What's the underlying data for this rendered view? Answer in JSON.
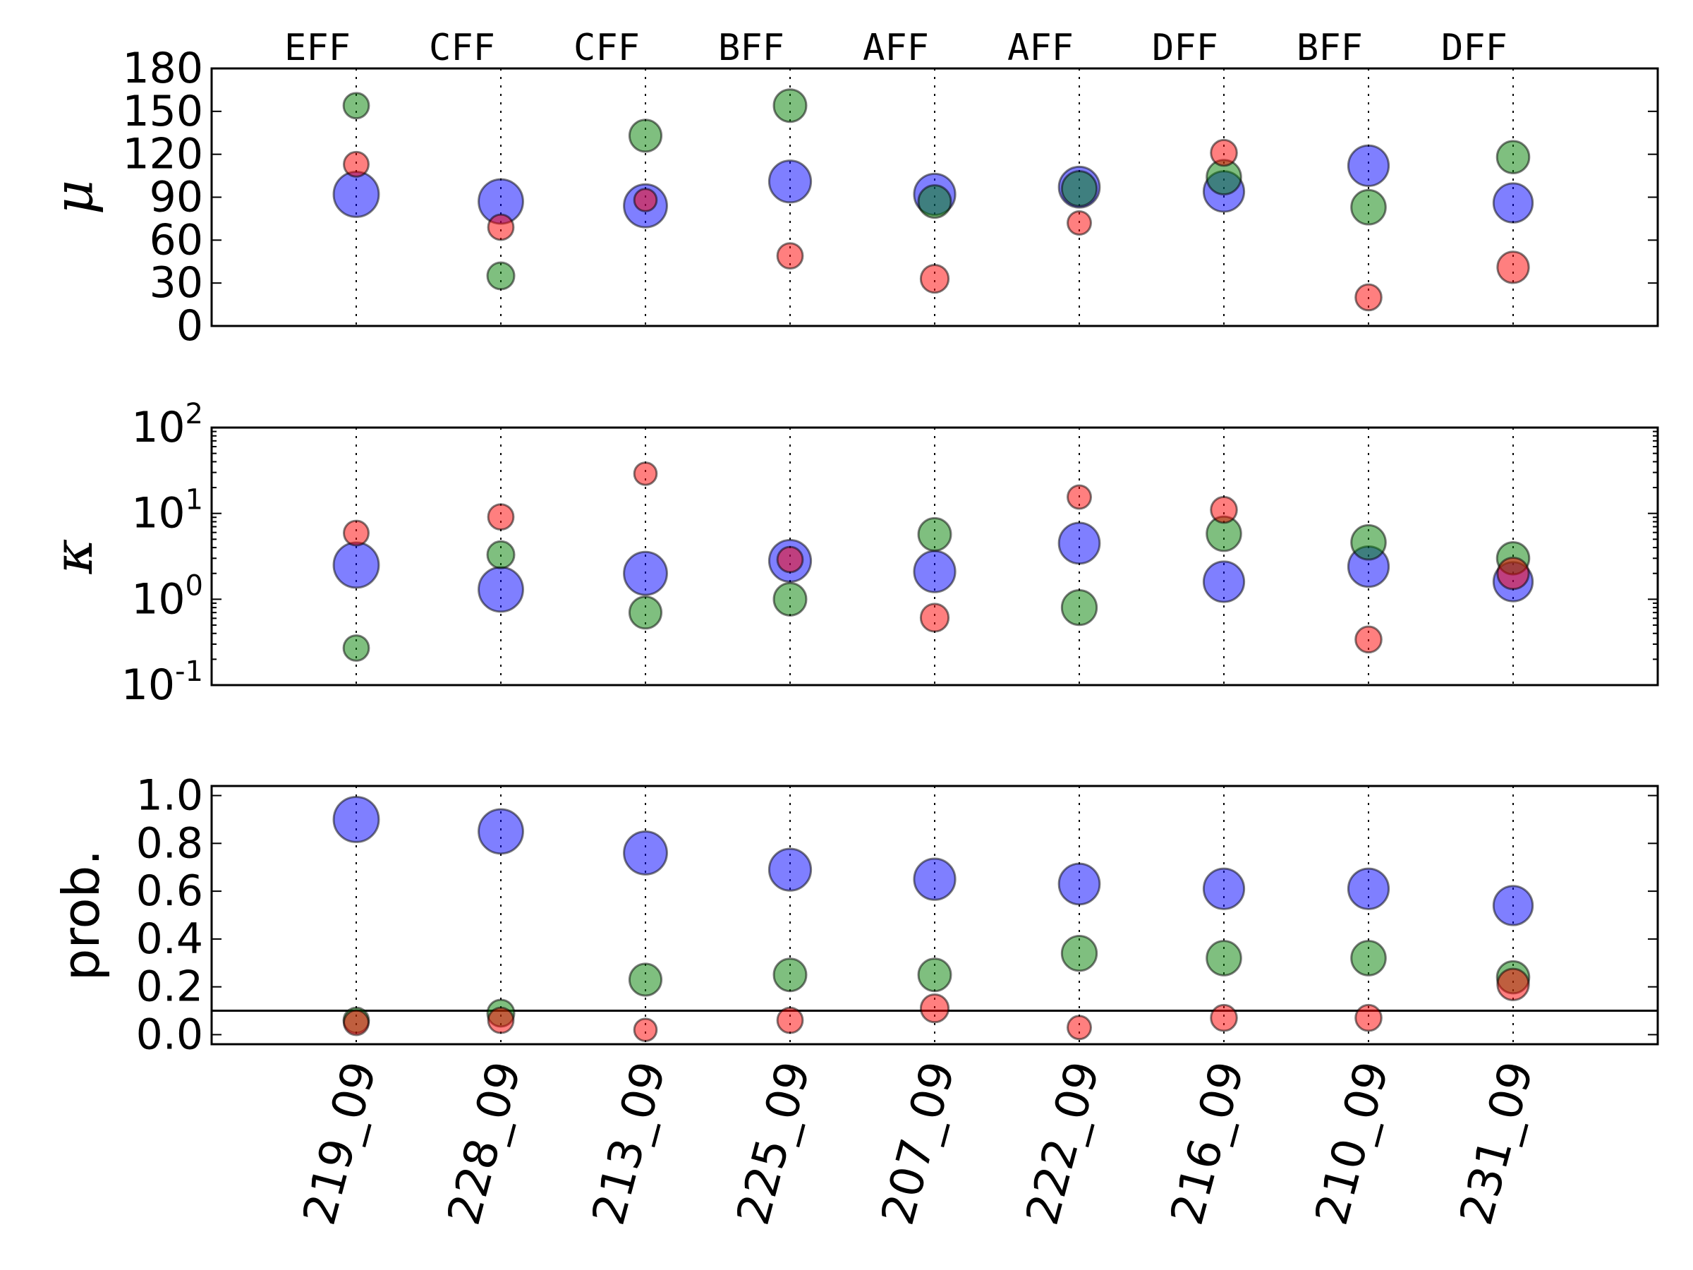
{
  "chart_data": {
    "type": "scatter",
    "categories": [
      "219_09",
      "228_09",
      "213_09",
      "225_09",
      "207_09",
      "222_09",
      "216_09",
      "210_09",
      "231_09"
    ],
    "condition_labels": [
      "EFF",
      "CFF",
      "CFF",
      "BFF",
      "AFF",
      "AFF",
      "DFF",
      "BFF",
      "DFF"
    ],
    "series_colors": [
      "#0000ff",
      "#008000",
      "#ff0000"
    ],
    "panels": [
      {
        "ylabel": "μ",
        "ylabel_style": "math-italic",
        "scale": "linear",
        "ylim": [
          0,
          180
        ],
        "yticks": [
          0,
          30,
          60,
          90,
          120,
          150,
          180
        ],
        "ytick_labels": [
          "0",
          "30",
          "60",
          "90",
          "120",
          "150",
          "180"
        ],
        "series": [
          {
            "values": [
              92,
              87,
              84,
              101,
              92,
              97,
              94,
              112,
              86
            ]
          },
          {
            "values": [
              154,
              35,
              133,
              154,
              87,
              96,
              104,
              83,
              118
            ]
          },
          {
            "values": [
              113,
              69,
              88,
              49,
              33,
              72,
              121,
              20,
              41
            ]
          }
        ]
      },
      {
        "ylabel": "κ",
        "ylabel_style": "math-italic",
        "scale": "log",
        "ylim": [
          0.1,
          100
        ],
        "yticks": [
          0.1,
          1,
          10,
          100
        ],
        "ytick_labels": [
          {
            "base": "10",
            "exp": "-1"
          },
          {
            "base": "10",
            "exp": "0"
          },
          {
            "base": "10",
            "exp": "1"
          },
          {
            "base": "10",
            "exp": "2"
          }
        ],
        "series": [
          {
            "values": [
              2.5,
              1.3,
              2.0,
              2.8,
              2.1,
              4.5,
              1.6,
              2.4,
              1.6
            ]
          },
          {
            "values": [
              0.27,
              3.3,
              0.7,
              1.0,
              5.7,
              0.8,
              5.8,
              4.6,
              3.0
            ]
          },
          {
            "values": [
              5.9,
              9.1,
              29,
              2.9,
              0.61,
              15.5,
              11,
              0.34,
              2.0
            ]
          }
        ]
      },
      {
        "ylabel": "prob.",
        "ylabel_style": "text",
        "scale": "linear",
        "ylim": [
          -0.04,
          1.04
        ],
        "yticks": [
          0.0,
          0.2,
          0.4,
          0.6,
          0.8,
          1.0
        ],
        "ytick_labels": [
          "0.0",
          "0.2",
          "0.4",
          "0.6",
          "0.8",
          "1.0"
        ],
        "hline": 0.1,
        "series": [
          {
            "values": [
              0.9,
              0.85,
              0.76,
              0.69,
              0.65,
              0.63,
              0.61,
              0.61,
              0.54
            ]
          },
          {
            "values": [
              0.06,
              0.09,
              0.23,
              0.25,
              0.25,
              0.34,
              0.32,
              0.32,
              0.24
            ]
          },
          {
            "values": [
              0.05,
              0.06,
              0.02,
              0.06,
              0.11,
              0.03,
              0.07,
              0.07,
              0.21
            ]
          }
        ]
      }
    ],
    "marker_size_encodes": "prob.",
    "grid": "vertical dotted lines at each category"
  }
}
